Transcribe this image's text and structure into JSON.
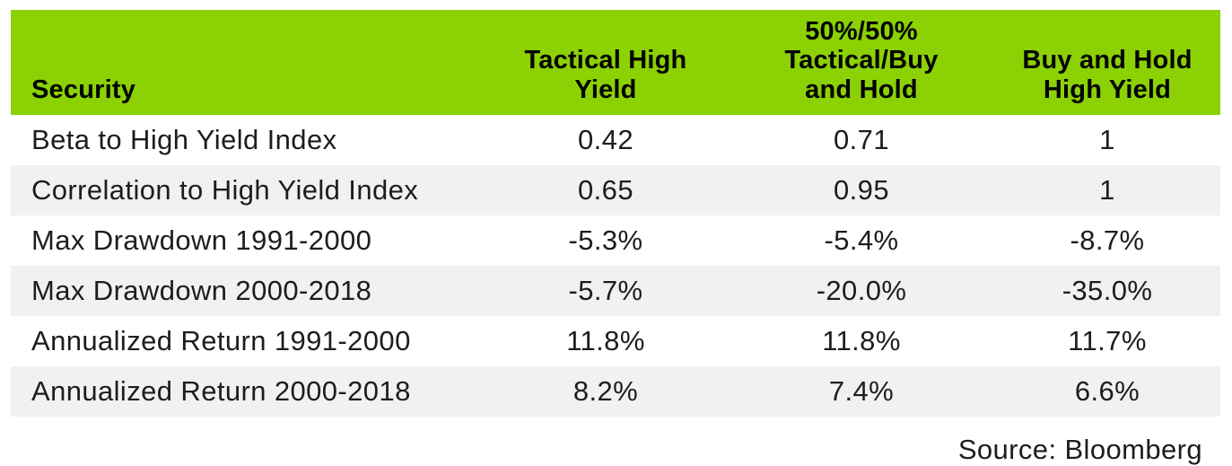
{
  "colors": {
    "header_green": "#8BD104",
    "row_stripe": "#F1F1F1",
    "text": "#1D1D1D"
  },
  "chart_data": {
    "type": "table",
    "columns": [
      "Security",
      "Tactical High Yield",
      "50%/50% Tactical/Buy and Hold",
      "Buy and Hold High Yield"
    ],
    "columns_display": [
      "Security",
      "Tactical High\nYield",
      "50%/50%\nTactical/Buy\nand Hold",
      "Buy and Hold\nHigh Yield"
    ],
    "rows": [
      [
        "Beta to High Yield Index",
        "0.42",
        "0.71",
        "1"
      ],
      [
        "Correlation to High Yield Index",
        "0.65",
        "0.95",
        "1"
      ],
      [
        "Max Drawdown 1991-2000",
        "-5.3%",
        "-5.4%",
        "-8.7%"
      ],
      [
        "Max Drawdown 2000-2018",
        "-5.7%",
        "-20.0%",
        "-35.0%"
      ],
      [
        "Annualized Return 1991-2000",
        "11.8%",
        "11.8%",
        "11.7%"
      ],
      [
        "Annualized Return 2000-2018",
        "8.2%",
        "7.4%",
        "6.6%"
      ]
    ],
    "source": "Source: Bloomberg",
    "layout": {
      "legend": "none",
      "grid": "off",
      "stripe_pattern": "even-rows-gray",
      "header_alignment": "bottom",
      "value_alignment": "center"
    }
  }
}
